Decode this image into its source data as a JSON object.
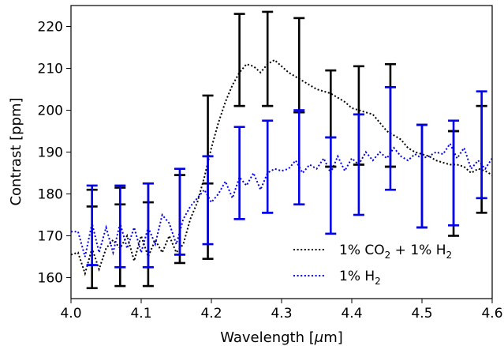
{
  "chart_data": {
    "type": "line",
    "xlabel": "Wavelength [",
    "xlabel_mu": "μ",
    "xlabel_end": "m]",
    "ylabel": "Contrast [ppm]",
    "xlim": [
      4.0,
      4.6
    ],
    "ylim": [
      155,
      225
    ],
    "xticks": [
      4.0,
      4.1,
      4.2,
      4.3,
      4.4,
      4.5,
      4.6
    ],
    "xtick_labels": [
      "4.0",
      "4.1",
      "4.2",
      "4.3",
      "4.4",
      "4.5",
      "4.6"
    ],
    "yticks": [
      160,
      170,
      180,
      190,
      200,
      210,
      220
    ],
    "ytick_labels": [
      "160",
      "170",
      "180",
      "190",
      "200",
      "210",
      "220"
    ],
    "grid": false,
    "legend_position": "lower-right",
    "series": [
      {
        "name": "1% CO2 + 1% H2",
        "legend_parts": [
          "1% CO",
          "2",
          " + 1% H",
          "2"
        ],
        "color": "#000000",
        "style": "dotted",
        "x": [
          4.0,
          4.01,
          4.02,
          4.03,
          4.04,
          4.05,
          4.06,
          4.07,
          4.08,
          4.09,
          4.1,
          4.11,
          4.12,
          4.13,
          4.14,
          4.15,
          4.16,
          4.17,
          4.18,
          4.19,
          4.2,
          4.21,
          4.22,
          4.23,
          4.24,
          4.25,
          4.26,
          4.27,
          4.28,
          4.29,
          4.3,
          4.31,
          4.32,
          4.33,
          4.34,
          4.35,
          4.36,
          4.37,
          4.38,
          4.39,
          4.4,
          4.41,
          4.42,
          4.43,
          4.44,
          4.45,
          4.46,
          4.47,
          4.48,
          4.49,
          4.5,
          4.51,
          4.52,
          4.53,
          4.54,
          4.55,
          4.56,
          4.57,
          4.58,
          4.59,
          4.6
        ],
        "y": [
          165.5,
          166,
          161,
          167,
          162,
          167,
          169,
          167,
          170,
          164,
          170,
          165,
          169,
          166,
          170,
          166,
          168,
          174,
          178,
          184,
          191,
          197,
          202,
          206,
          209,
          211,
          210.5,
          209,
          211,
          212,
          210.5,
          209,
          208,
          207,
          206,
          205,
          204.5,
          204,
          203,
          202,
          200.5,
          200,
          199.5,
          199,
          197,
          195,
          194,
          193,
          191,
          190,
          189.5,
          189,
          188,
          187.5,
          187,
          187,
          186.5,
          185,
          186,
          185.5,
          184.5
        ]
      },
      {
        "name": "1% H2",
        "legend_parts": [
          "1% H",
          "2",
          "",
          ""
        ],
        "color": "#0000ee",
        "style": "dotted",
        "x": [
          4.0,
          4.01,
          4.02,
          4.03,
          4.04,
          4.05,
          4.06,
          4.07,
          4.08,
          4.09,
          4.1,
          4.11,
          4.12,
          4.13,
          4.14,
          4.15,
          4.16,
          4.17,
          4.18,
          4.19,
          4.2,
          4.21,
          4.22,
          4.23,
          4.24,
          4.25,
          4.26,
          4.27,
          4.28,
          4.29,
          4.3,
          4.31,
          4.32,
          4.33,
          4.34,
          4.35,
          4.36,
          4.37,
          4.38,
          4.39,
          4.4,
          4.41,
          4.42,
          4.43,
          4.44,
          4.45,
          4.46,
          4.47,
          4.48,
          4.49,
          4.5,
          4.51,
          4.52,
          4.53,
          4.54,
          4.55,
          4.56,
          4.57,
          4.58,
          4.59,
          4.6
        ],
        "y": [
          171,
          171,
          165,
          173,
          166,
          172,
          166,
          173,
          167,
          172,
          166,
          172,
          168,
          175,
          173,
          168,
          174,
          177,
          179,
          181,
          178,
          180,
          183,
          179,
          184,
          182,
          185,
          181,
          185,
          186,
          185.5,
          186,
          188,
          185,
          187,
          186,
          188.5,
          185,
          189,
          185.5,
          188.5,
          187,
          190,
          188,
          190,
          188.5,
          191,
          189,
          188,
          189.5,
          188.5,
          189,
          190,
          189.5,
          192,
          188.5,
          191,
          186,
          188,
          186,
          188.5
        ]
      }
    ],
    "errorbars": [
      {
        "name": "1% CO2 + 1% H2",
        "color": "#000000",
        "points": [
          {
            "x": 4.03,
            "y": 177,
            "lo": 157.5,
            "hi": 181
          },
          {
            "x": 4.07,
            "y": 177.5,
            "lo": 158,
            "hi": 181.5
          },
          {
            "x": 4.11,
            "y": 178,
            "lo": 158,
            "hi": 182.5
          },
          {
            "x": 4.155,
            "y": 184.5,
            "lo": 163.5,
            "hi": 184.5
          },
          {
            "x": 4.195,
            "y": 182.5,
            "lo": 164.5,
            "hi": 203.5
          },
          {
            "x": 4.24,
            "y": 201,
            "lo": 201,
            "hi": 223
          },
          {
            "x": 4.28,
            "y": 201,
            "lo": 201,
            "hi": 223.5
          },
          {
            "x": 4.325,
            "y": 199.5,
            "lo": 199.5,
            "hi": 222
          },
          {
            "x": 4.37,
            "y": 186.5,
            "lo": 186.5,
            "hi": 209.5
          },
          {
            "x": 4.41,
            "y": 187,
            "lo": 187,
            "hi": 210.5
          },
          {
            "x": 4.455,
            "y": 186.5,
            "lo": 186.5,
            "hi": 211
          },
          {
            "x": 4.5,
            "y": 196.5,
            "lo": 172,
            "hi": 196.5
          },
          {
            "x": 4.545,
            "y": 195,
            "lo": 170,
            "hi": 195
          },
          {
            "x": 4.585,
            "y": 201,
            "lo": 175.5,
            "hi": 201
          }
        ]
      },
      {
        "name": "1% H2",
        "color": "#0000ee",
        "points": [
          {
            "x": 4.03,
            "y": 163,
            "lo": 163,
            "hi": 182
          },
          {
            "x": 4.07,
            "y": 162.5,
            "lo": 162.5,
            "hi": 182
          },
          {
            "x": 4.11,
            "y": 162.5,
            "lo": 162.5,
            "hi": 182.5
          },
          {
            "x": 4.155,
            "y": 165.5,
            "lo": 165.5,
            "hi": 186
          },
          {
            "x": 4.195,
            "y": 189,
            "lo": 168,
            "hi": 189
          },
          {
            "x": 4.24,
            "y": 174,
            "lo": 174,
            "hi": 196
          },
          {
            "x": 4.28,
            "y": 175.5,
            "lo": 175.5,
            "hi": 197.5
          },
          {
            "x": 4.325,
            "y": 177.5,
            "lo": 177.5,
            "hi": 200
          },
          {
            "x": 4.37,
            "y": 193.5,
            "lo": 170.5,
            "hi": 193.5
          },
          {
            "x": 4.41,
            "y": 199,
            "lo": 175,
            "hi": 199
          },
          {
            "x": 4.455,
            "y": 205.5,
            "lo": 181,
            "hi": 205.5
          },
          {
            "x": 4.5,
            "y": 172,
            "lo": 172,
            "hi": 196.5
          },
          {
            "x": 4.545,
            "y": 172.5,
            "lo": 172.5,
            "hi": 197.5
          },
          {
            "x": 4.585,
            "y": 179,
            "lo": 179,
            "hi": 204.5
          }
        ]
      }
    ]
  }
}
